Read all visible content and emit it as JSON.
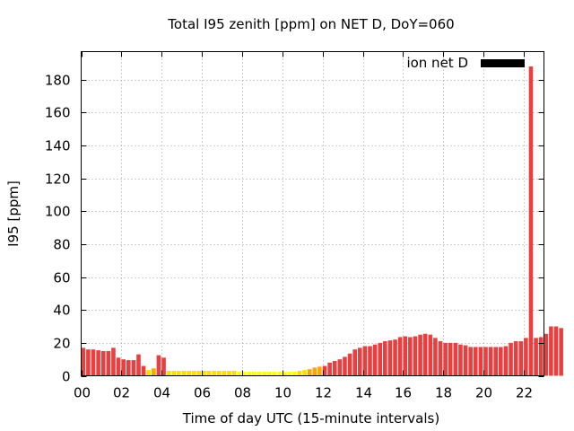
{
  "chart_data": {
    "type": "bar",
    "title": "Total I95 zenith [ppm] on NET D, DoY=060",
    "xlabel": "Time of day UTC (15-minute intervals)",
    "ylabel": "I95 [ppm]",
    "xlim": [
      0,
      23
    ],
    "ylim": [
      0,
      197
    ],
    "xticks": [
      "00",
      "02",
      "04",
      "06",
      "08",
      "10",
      "12",
      "14",
      "16",
      "18",
      "20",
      "22"
    ],
    "yticks": [
      0,
      20,
      40,
      60,
      80,
      100,
      120,
      140,
      160,
      180
    ],
    "grid": true,
    "legend": {
      "label": "ion net D",
      "color": "#000000",
      "position": "top-right"
    },
    "interval_hours": 0.25,
    "color_scale": {
      "high": "#e84040",
      "mid": "#ffa500",
      "low": "#ffdd00",
      "lowest": "#ffff00"
    },
    "values": [
      17,
      16,
      16,
      15.5,
      15,
      15,
      17,
      11,
      10,
      9.5,
      9.5,
      13,
      6,
      3.5,
      4.5,
      12.5,
      11,
      3,
      3,
      3,
      3,
      3,
      3,
      3,
      3,
      3,
      3,
      3,
      3,
      3,
      3,
      2.5,
      2.5,
      2.5,
      2.5,
      2.5,
      2.5,
      2.5,
      2.5,
      2.5,
      2.5,
      2.5,
      2.5,
      3,
      3.5,
      4,
      5,
      5.5,
      6,
      8,
      9,
      10,
      11.5,
      13.5,
      16,
      17,
      18,
      18,
      19,
      20,
      21,
      21.5,
      22,
      23.5,
      24,
      23.5,
      24,
      25,
      25.5,
      25,
      23,
      21,
      20,
      20,
      20,
      19,
      18.5,
      17.5,
      17.5,
      17.5,
      17.5,
      17.5,
      17.5,
      17.5,
      18,
      20,
      21,
      21,
      23,
      188,
      23,
      23.5,
      25.5,
      30,
      30,
      29
    ]
  }
}
